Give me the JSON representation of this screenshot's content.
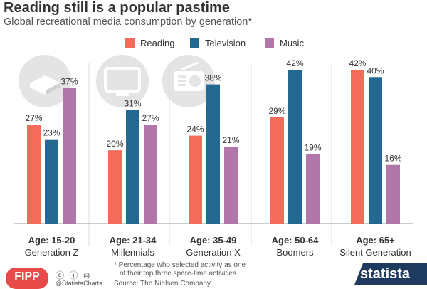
{
  "header": {
    "title": "Reading still is a popular pastime",
    "subtitle": "Global recreational media consumption by generation*"
  },
  "chart_data": {
    "type": "bar",
    "categories": [
      "Age: 15-20",
      "Age: 21-34",
      "Age: 35-49",
      "Age: 50-64",
      "Age: 65+"
    ],
    "category_sublabels": [
      "Generation Z",
      "Millennials",
      "Generation X",
      "Boomers",
      "Silent Generation"
    ],
    "series": [
      {
        "name": "Reading",
        "values": [
          27,
          20,
          24,
          29,
          42
        ],
        "labels": [
          "27%",
          "20%",
          "24%",
          "29%",
          "42%"
        ]
      },
      {
        "name": "Television",
        "values": [
          23,
          31,
          38,
          42,
          40
        ],
        "labels": [
          "23%",
          "31%",
          "38%",
          "42%",
          "40%"
        ]
      },
      {
        "name": "Music",
        "values": [
          37,
          27,
          21,
          19,
          16
        ],
        "labels": [
          "37%",
          "27%",
          "21%",
          "19%",
          "16%"
        ]
      }
    ],
    "colors": {
      "Reading": "#f26b5b",
      "Television": "#24698f",
      "Music": "#b277aa"
    },
    "ylim": [
      0,
      42
    ],
    "grid": false,
    "legend_position": "top-center",
    "icons": [
      "book-icon",
      "tv-icon",
      "radio-icon"
    ]
  },
  "footer": {
    "footnote_line1": "* Percentage who selected activity as one",
    "footnote_line2": "of their top three spare-time activities",
    "source": "Source: The Nielsen Company",
    "handle": "@StatistaCharts",
    "fipp_logo_text": "FIPP",
    "statista_logo_text": "statista"
  }
}
